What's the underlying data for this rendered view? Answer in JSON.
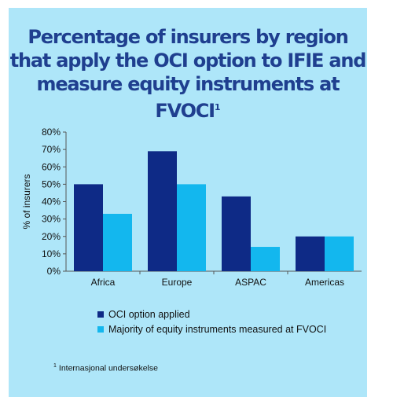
{
  "title": {
    "text": "Percentage of insurers by region that apply the OCI option to IFIE and measure equity instruments at FVOCI",
    "footnote_marker": "1"
  },
  "footnote": {
    "marker": "1",
    "text": "Internasjonal undersøkelse"
  },
  "colors": {
    "background": "#aee6f9",
    "title": "#1f3f8f",
    "series_1": "#0e2a86",
    "series_2": "#13b7ee"
  },
  "chart_data": {
    "type": "bar",
    "categories": [
      "Africa",
      "Europe",
      "ASPAC",
      "Americas"
    ],
    "series": [
      {
        "name": "OCI option applied",
        "values": [
          50,
          69,
          43,
          20
        ]
      },
      {
        "name": "Majority of equity instruments measured at FVOCI",
        "values": [
          33,
          50,
          14,
          20
        ]
      }
    ],
    "title": "Percentage of insurers by region that apply the OCI option to IFIE and measure equity instruments at FVOCI",
    "xlabel": "",
    "ylabel": "% of insurers",
    "ylim": [
      0,
      80
    ],
    "yticks": [
      "0%",
      "10%",
      "20%",
      "30%",
      "40%",
      "50%",
      "60%",
      "70%",
      "80%"
    ],
    "grid": false,
    "legend": "bottom"
  }
}
